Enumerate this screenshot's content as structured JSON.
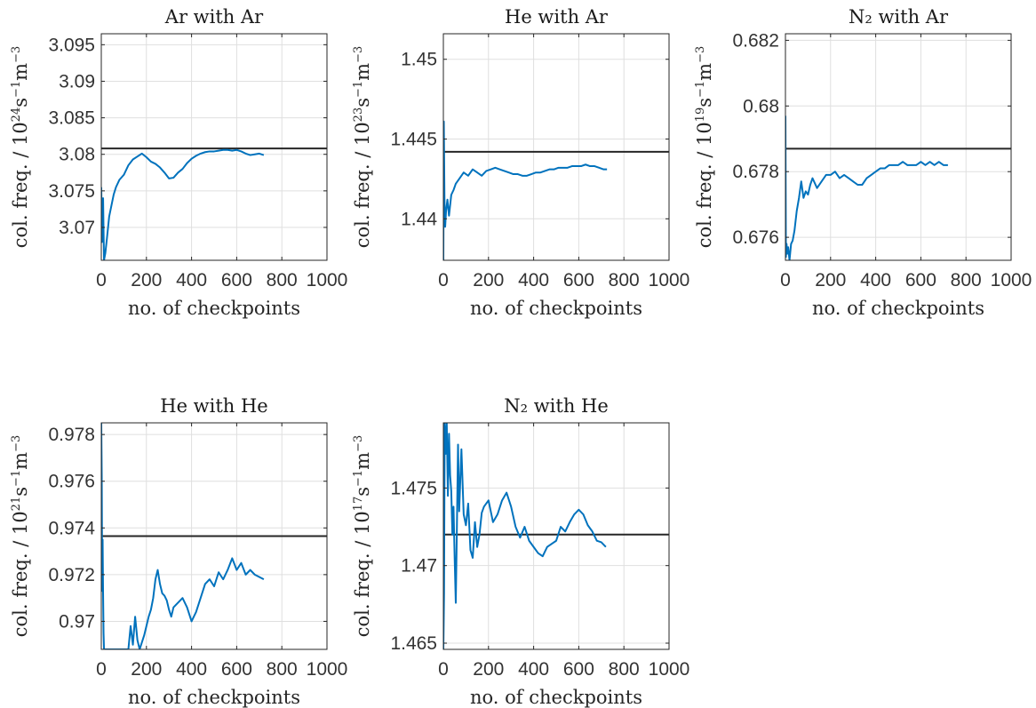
{
  "chart_data": [
    {
      "type": "line",
      "title": "Ar with Ar",
      "xlabel": "no. of checkpoints",
      "ylabel_prefix": "col. freq. / 10",
      "ylabel_exp": "24",
      "xlim": [
        0,
        1000
      ],
      "ylim": [
        3.0655,
        3.0965
      ],
      "xticks": [
        "0",
        "200",
        "400",
        "600",
        "800",
        "1000"
      ],
      "yticks": [
        3.07,
        3.075,
        3.08,
        3.085,
        3.09,
        3.095
      ],
      "ytick_labels": [
        "3.07",
        "3.075",
        "3.08",
        "3.085",
        "3.09",
        "3.095"
      ],
      "grid": true,
      "reference_line": 3.0808,
      "series": [
        {
          "x": [
            0,
            3,
            8,
            12,
            18,
            25,
            35,
            45,
            55,
            65,
            80,
            100,
            120,
            140,
            160,
            180,
            200,
            220,
            240,
            260,
            280,
            300,
            320,
            340,
            360,
            380,
            400,
            420,
            440,
            460,
            480,
            500,
            520,
            540,
            560,
            580,
            600,
            620,
            640,
            660,
            680,
            700,
            720
          ],
          "y": [
            3.0755,
            3.068,
            3.074,
            3.0655,
            3.0665,
            3.0685,
            3.0715,
            3.073,
            3.0745,
            3.0755,
            3.0765,
            3.0772,
            3.0785,
            3.0793,
            3.0797,
            3.0801,
            3.0796,
            3.079,
            3.0787,
            3.0782,
            3.0775,
            3.0767,
            3.0768,
            3.0775,
            3.078,
            3.0788,
            3.0794,
            3.0798,
            3.0801,
            3.0803,
            3.0804,
            3.0804,
            3.0805,
            3.0806,
            3.0806,
            3.0805,
            3.0806,
            3.0804,
            3.0801,
            3.0799,
            3.08,
            3.0801,
            3.0799
          ]
        }
      ]
    },
    {
      "type": "line",
      "title": "He with Ar",
      "xlabel": "no. of checkpoints",
      "ylabel_prefix": "col. freq. / 10",
      "ylabel_exp": "23",
      "xlim": [
        0,
        1000
      ],
      "ylim": [
        1.4374,
        1.4516
      ],
      "xticks": [
        "0",
        "200",
        "400",
        "600",
        "800",
        "1000"
      ],
      "yticks": [
        1.44,
        1.445,
        1.45
      ],
      "ytick_labels": [
        "1.44",
        "1.445",
        "1.45"
      ],
      "grid": true,
      "reference_line": 1.4442,
      "series": [
        {
          "x": [
            0,
            2,
            5,
            8,
            12,
            18,
            25,
            35,
            45,
            55,
            70,
            90,
            110,
            130,
            150,
            170,
            190,
            210,
            230,
            250,
            270,
            290,
            310,
            330,
            350,
            370,
            390,
            410,
            430,
            450,
            470,
            490,
            510,
            530,
            550,
            570,
            590,
            610,
            630,
            650,
            670,
            690,
            710,
            725
          ],
          "y": [
            1.4374,
            1.4461,
            1.4412,
            1.4395,
            1.4405,
            1.4412,
            1.4402,
            1.4415,
            1.4418,
            1.4422,
            1.4425,
            1.4429,
            1.4427,
            1.4431,
            1.4429,
            1.4427,
            1.443,
            1.4431,
            1.4432,
            1.4431,
            1.443,
            1.4429,
            1.4428,
            1.4428,
            1.4427,
            1.4427,
            1.4428,
            1.4429,
            1.4429,
            1.443,
            1.4431,
            1.4431,
            1.4432,
            1.4432,
            1.4432,
            1.4433,
            1.4433,
            1.4433,
            1.4434,
            1.4433,
            1.4433,
            1.4432,
            1.4431,
            1.4431
          ]
        }
      ]
    },
    {
      "type": "line",
      "title": "N₂ with Ar",
      "xlabel": "no. of checkpoints",
      "ylabel_prefix": "col. freq. / 10",
      "ylabel_exp": "19",
      "xlim": [
        0,
        1000
      ],
      "ylim": [
        0.6753,
        0.6822
      ],
      "xticks": [
        "0",
        "200",
        "400",
        "600",
        "800",
        "1000"
      ],
      "yticks": [
        0.676,
        0.678,
        0.68,
        0.682
      ],
      "ytick_labels": [
        "0.676",
        "0.678",
        "0.68",
        "0.682"
      ],
      "grid": true,
      "reference_line": 0.6787,
      "series": [
        {
          "x": [
            0,
            2,
            5,
            8,
            12,
            18,
            25,
            32,
            40,
            50,
            60,
            70,
            80,
            90,
            100,
            110,
            120,
            140,
            160,
            180,
            200,
            220,
            240,
            260,
            280,
            300,
            320,
            340,
            360,
            380,
            400,
            420,
            440,
            460,
            480,
            500,
            520,
            540,
            560,
            580,
            600,
            620,
            640,
            660,
            680,
            700,
            720
          ],
          "y": [
            0.6797,
            0.6754,
            0.6758,
            0.6755,
            0.6757,
            0.6753,
            0.6758,
            0.6759,
            0.6762,
            0.6768,
            0.6772,
            0.6777,
            0.6772,
            0.6774,
            0.6773,
            0.6776,
            0.6778,
            0.6775,
            0.6777,
            0.6779,
            0.6779,
            0.678,
            0.6778,
            0.6779,
            0.6778,
            0.6777,
            0.6776,
            0.6776,
            0.6778,
            0.6779,
            0.678,
            0.6781,
            0.6781,
            0.6782,
            0.6782,
            0.6782,
            0.6783,
            0.6782,
            0.6782,
            0.6782,
            0.6783,
            0.6782,
            0.6783,
            0.6782,
            0.6783,
            0.6782,
            0.6782
          ]
        }
      ]
    },
    {
      "type": "line",
      "title": "He with He",
      "xlabel": "no. of checkpoints",
      "ylabel_prefix": "col. freq. / 10",
      "ylabel_exp": "21",
      "xlim": [
        0,
        1000
      ],
      "ylim": [
        0.9688,
        0.9785
      ],
      "xticks": [
        "0",
        "200",
        "400",
        "600",
        "800",
        "1000"
      ],
      "yticks": [
        0.97,
        0.972,
        0.974,
        0.976,
        0.978
      ],
      "ytick_labels": [
        "0.97",
        "0.972",
        "0.974",
        "0.976",
        "0.978"
      ],
      "grid": true,
      "reference_line": 0.97365,
      "series": [
        {
          "x": [
            0,
            2,
            4,
            6,
            8,
            10,
            12,
            14,
            120,
            130,
            140,
            150,
            160,
            170,
            180,
            190,
            200,
            210,
            220,
            230,
            240,
            250,
            260,
            270,
            280,
            290,
            300,
            310,
            320,
            340,
            360,
            380,
            400,
            420,
            440,
            460,
            480,
            500,
            520,
            540,
            560,
            580,
            600,
            620,
            640,
            660,
            680,
            700,
            720
          ],
          "y": [
            0.9785,
            0.9762,
            0.9713,
            0.9735,
            0.9712,
            0.9695,
            0.9688,
            0.9688,
            0.9688,
            0.9698,
            0.969,
            0.9702,
            0.9692,
            0.9688,
            0.9691,
            0.9694,
            0.9698,
            0.9702,
            0.9705,
            0.971,
            0.9718,
            0.9722,
            0.9716,
            0.9712,
            0.9711,
            0.9709,
            0.9705,
            0.9702,
            0.9706,
            0.9708,
            0.971,
            0.9706,
            0.97,
            0.9704,
            0.971,
            0.9716,
            0.9718,
            0.9715,
            0.9721,
            0.9718,
            0.9722,
            0.9727,
            0.9722,
            0.9725,
            0.972,
            0.9722,
            0.972,
            0.9719,
            0.9718
          ]
        }
      ]
    },
    {
      "type": "line",
      "title": "N₂ with He",
      "xlabel": "no. of checkpoints",
      "ylabel_prefix": "col. freq. / 10",
      "ylabel_exp": "17",
      "xlim": [
        0,
        1000
      ],
      "ylim": [
        1.4646,
        1.4792
      ],
      "xticks": [
        "0",
        "200",
        "400",
        "600",
        "800",
        "1000"
      ],
      "yticks": [
        1.465,
        1.47,
        1.475
      ],
      "ytick_labels": [
        "1.465",
        "1.47",
        "1.475"
      ],
      "grid": true,
      "reference_line": 1.472,
      "series": [
        {
          "x": [
            0,
            3,
            6,
            10,
            15,
            20,
            25,
            30,
            35,
            40,
            45,
            50,
            55,
            60,
            65,
            70,
            80,
            90,
            100,
            110,
            120,
            130,
            140,
            150,
            160,
            170,
            180,
            200,
            220,
            240,
            260,
            280,
            300,
            320,
            340,
            360,
            380,
            400,
            420,
            440,
            460,
            480,
            500,
            520,
            540,
            560,
            580,
            600,
            620,
            640,
            660,
            680,
            700,
            720
          ],
          "y": [
            1.4646,
            1.4682,
            1.4792,
            1.4772,
            1.4792,
            1.4745,
            1.4785,
            1.4758,
            1.4748,
            1.472,
            1.4738,
            1.4705,
            1.4676,
            1.4725,
            1.4778,
            1.4735,
            1.4775,
            1.4733,
            1.4726,
            1.474,
            1.471,
            1.4705,
            1.4728,
            1.4712,
            1.472,
            1.4734,
            1.4738,
            1.4742,
            1.4728,
            1.4733,
            1.4742,
            1.4747,
            1.4738,
            1.4725,
            1.4718,
            1.4725,
            1.4716,
            1.4712,
            1.4708,
            1.4706,
            1.4712,
            1.4714,
            1.4716,
            1.4725,
            1.4722,
            1.4728,
            1.4733,
            1.4736,
            1.4733,
            1.4726,
            1.4722,
            1.4716,
            1.4715,
            1.4712
          ]
        }
      ]
    }
  ],
  "colors": {
    "series": "#0072BD",
    "reference": "#262626",
    "grid": "#DFDFDF",
    "axes": "#262626"
  }
}
